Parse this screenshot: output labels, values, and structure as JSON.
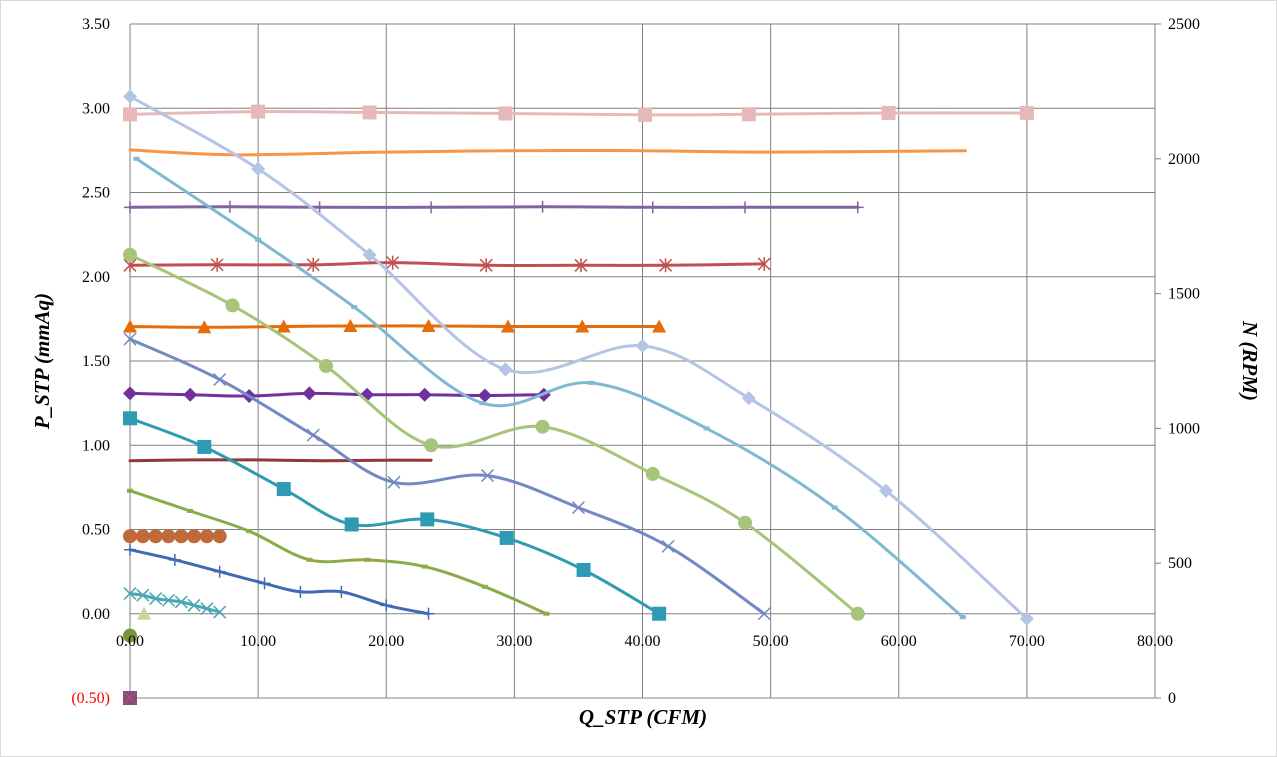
{
  "chart_data": {
    "type": "line",
    "xlabel": "Q_STP (CFM)",
    "ylabel": "P_STP (mmAq)",
    "y2label": "N (RPM)",
    "xlim": [
      0,
      80
    ],
    "ylim": [
      -0.5,
      3.5
    ],
    "y2lim": [
      0,
      2500
    ],
    "grid": true,
    "legend": "none",
    "x_ticks": [
      "0.00",
      "10.00",
      "20.00",
      "30.00",
      "40.00",
      "50.00",
      "60.00",
      "70.00",
      "80.00"
    ],
    "y_ticks": [
      "(0.50)",
      "0.00",
      "0.50",
      "1.00",
      "1.50",
      "2.00",
      "2.50",
      "3.00",
      "3.50"
    ],
    "y2_ticks": [
      "0",
      "500",
      "1000",
      "1500",
      "2000",
      "2500"
    ],
    "series": [
      {
        "axis": "y2",
        "marker": "square",
        "color": "#e6b9b8",
        "x": [
          0,
          10,
          18.7,
          29.3,
          40.2,
          48.3,
          59.2,
          70
        ],
        "y": [
          2165,
          2175,
          2172,
          2168,
          2163,
          2165,
          2170,
          2170
        ]
      },
      {
        "axis": "y2",
        "marker": "none",
        "color": "#f79646",
        "x": [
          0,
          8,
          20,
          30,
          40,
          50,
          65.2
        ],
        "y": [
          2033,
          2015,
          2025,
          2030,
          2030,
          2025,
          2030
        ]
      },
      {
        "axis": "y2",
        "marker": "plus",
        "color": "#8064a2",
        "x": [
          0,
          7.8,
          14.8,
          23.5,
          32.2,
          40.8,
          48,
          56.8
        ],
        "y": [
          1820,
          1822,
          1820,
          1820,
          1822,
          1820,
          1820,
          1820
        ]
      },
      {
        "axis": "y2",
        "marker": "star",
        "color": "#c0504d",
        "x": [
          0,
          6.8,
          14.3,
          20.5,
          27.8,
          35.2,
          41.8,
          49.5
        ],
        "y": [
          1605,
          1607,
          1607,
          1615,
          1605,
          1605,
          1605,
          1610
        ]
      },
      {
        "axis": "y2",
        "marker": "triangle",
        "color": "#e46c0a",
        "x": [
          0,
          5.8,
          12,
          17.2,
          23.3,
          29.5,
          35.3,
          41.3
        ],
        "y": [
          1378,
          1375,
          1378,
          1380,
          1380,
          1378,
          1378,
          1378
        ]
      },
      {
        "axis": "y2",
        "marker": "diamond",
        "color": "#7030a0",
        "x": [
          0,
          4.7,
          9.3,
          14,
          18.5,
          23,
          27.7,
          32.3
        ],
        "y": [
          1130,
          1125,
          1120,
          1130,
          1125,
          1125,
          1122,
          1125
        ]
      },
      {
        "axis": "y2",
        "marker": "none",
        "color": "#953735",
        "x": [
          0,
          5,
          10,
          15,
          20,
          23.5
        ],
        "y": [
          880,
          883,
          883,
          880,
          882,
          882
        ]
      },
      {
        "axis": "y2",
        "marker": "circle",
        "color": "#c0693b",
        "x": [
          0,
          1,
          2,
          3,
          4,
          5,
          6,
          7
        ],
        "y": [
          600,
          600,
          600,
          600,
          600,
          600,
          600,
          600
        ]
      },
      {
        "axis": "y1",
        "marker": "diamond",
        "color": "#b3c4e4",
        "x": [
          0,
          10,
          18.7,
          29.3,
          40,
          48.3,
          59,
          70
        ],
        "y": [
          3.07,
          2.64,
          2.13,
          1.45,
          1.59,
          1.28,
          0.73,
          -0.03
        ]
      },
      {
        "axis": "y1",
        "marker": "dash",
        "color": "#7fb9d1",
        "x": [
          0.5,
          10,
          17.5,
          27.5,
          36,
          45,
          55,
          65
        ],
        "y": [
          2.7,
          2.22,
          1.82,
          1.25,
          1.37,
          1.1,
          0.63,
          -0.02
        ]
      },
      {
        "axis": "y1",
        "marker": "circle",
        "color": "#a6c47a",
        "x": [
          0,
          8,
          15.3,
          23.5,
          32.2,
          40.8,
          48,
          56.8
        ],
        "y": [
          2.13,
          1.83,
          1.47,
          1.0,
          1.11,
          0.83,
          0.54,
          0.0
        ]
      },
      {
        "axis": "y1",
        "marker": "x",
        "color": "#7289c4",
        "x": [
          0,
          7,
          14.3,
          20.6,
          27.9,
          35,
          42,
          49.5
        ],
        "y": [
          1.63,
          1.39,
          1.06,
          0.78,
          0.82,
          0.63,
          0.4,
          0.0
        ]
      },
      {
        "axis": "y1",
        "marker": "square",
        "color": "#2e9bb3",
        "x": [
          0,
          5.8,
          12,
          17.3,
          23.2,
          29.4,
          35.4,
          41.3
        ],
        "y": [
          1.16,
          0.99,
          0.74,
          0.53,
          0.56,
          0.45,
          0.26,
          0.0
        ]
      },
      {
        "axis": "y1",
        "marker": "dash",
        "color": "#8bab48",
        "x": [
          0,
          4.7,
          9.3,
          14,
          18.5,
          23,
          27.7,
          32.5
        ],
        "y": [
          0.73,
          0.61,
          0.49,
          0.32,
          0.32,
          0.28,
          0.16,
          0.0
        ]
      },
      {
        "axis": "y1",
        "marker": "plus",
        "color": "#4169b4",
        "x": [
          0,
          3.5,
          7,
          10.5,
          13.3,
          16.5,
          20,
          23.3
        ],
        "y": [
          0.38,
          0.32,
          0.25,
          0.18,
          0.13,
          0.13,
          0.05,
          0.0
        ]
      },
      {
        "axis": "y1",
        "marker": "x",
        "color": "#4aa6b4",
        "x": [
          0,
          1,
          2,
          3,
          4,
          5,
          6,
          7
        ],
        "y": [
          0.12,
          0.11,
          0.09,
          0.08,
          0.07,
          0.05,
          0.03,
          0.01
        ]
      },
      {
        "axis": "y1",
        "marker": "triangle",
        "color": "#c4d79b",
        "x": [
          1.1
        ],
        "y": [
          0.0
        ]
      },
      {
        "axis": "y1",
        "marker": "circle",
        "color": "#77933c",
        "x": [
          0
        ],
        "y": [
          -0.13
        ]
      },
      {
        "axis": "y1",
        "marker": "square",
        "color": "#7b4c8f",
        "x": [
          0
        ],
        "y": [
          -0.5
        ]
      },
      {
        "axis": "y1",
        "marker": "x",
        "color": "#c0504d",
        "x": [
          0
        ],
        "y": [
          -0.5
        ]
      }
    ]
  }
}
